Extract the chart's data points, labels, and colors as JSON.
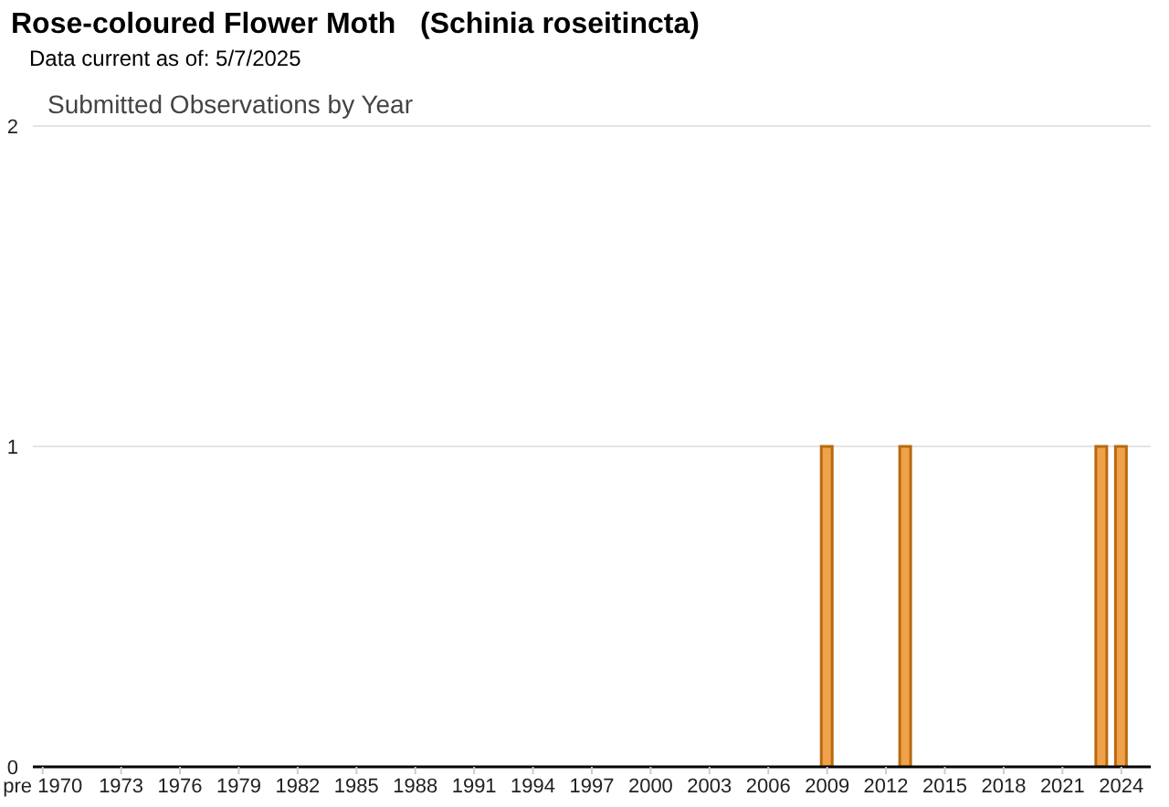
{
  "chart_data": {
    "type": "bar",
    "title": "Rose-coloured Flower Moth   (Schinia roseitincta)",
    "subtitle": "Data current as of: 5/7/2025",
    "annotations": [
      "Submitted Observations by Year"
    ],
    "categories": [
      "pre 1970",
      null,
      null,
      null,
      "1973",
      null,
      null,
      "1976",
      null,
      null,
      "1979",
      null,
      null,
      "1982",
      null,
      null,
      "1985",
      null,
      null,
      "1988",
      null,
      null,
      "1991",
      null,
      null,
      "1994",
      null,
      null,
      "1997",
      null,
      null,
      "2000",
      null,
      null,
      "2003",
      null,
      null,
      "2006",
      null,
      null,
      "2009",
      null,
      null,
      "2012",
      null,
      null,
      "2015",
      null,
      null,
      "2018",
      null,
      null,
      "2021",
      null,
      null,
      "2024",
      null
    ],
    "values": [
      0,
      0,
      0,
      0,
      0,
      0,
      0,
      0,
      0,
      0,
      0,
      0,
      0,
      0,
      0,
      0,
      0,
      0,
      0,
      0,
      0,
      0,
      0,
      0,
      0,
      0,
      0,
      0,
      0,
      0,
      0,
      0,
      0,
      0,
      0,
      0,
      0,
      0,
      0,
      0,
      1,
      0,
      0,
      0,
      1,
      0,
      0,
      0,
      0,
      0,
      0,
      0,
      0,
      0,
      1,
      1,
      0
    ],
    "color": "#f0a24a",
    "ylim": [
      0,
      2
    ],
    "yticks": [
      0,
      1,
      2
    ],
    "grid": "y"
  }
}
